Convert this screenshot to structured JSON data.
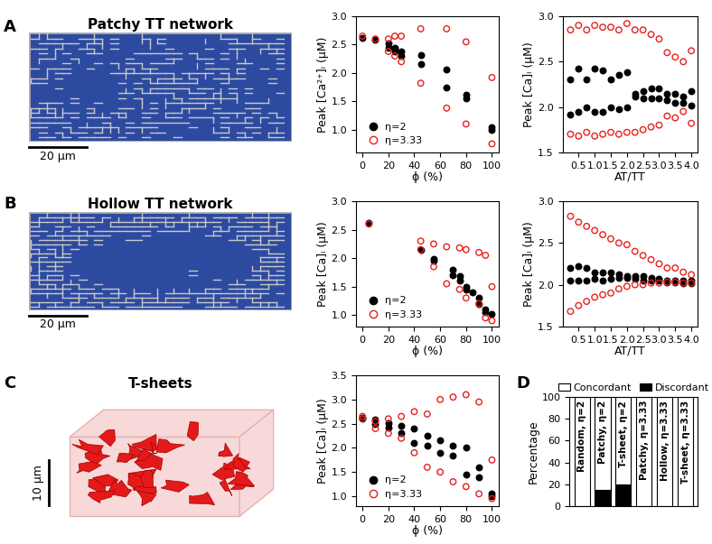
{
  "panel_labels": [
    "A",
    "B",
    "C",
    "D"
  ],
  "images": [
    {
      "title": "Patchy TT network",
      "scale_bar": "20 µm"
    },
    {
      "title": "Hollow TT network",
      "scale_bar": "20 µm"
    },
    {
      "title": "T-sheets",
      "scale_bar": "10 µm"
    }
  ],
  "chart_data": [
    {
      "type": "scatter",
      "x_label": "ϕ (%)",
      "y_label": "Peak [Ca²⁺]ᵢ (µM)",
      "xlim": [
        -5,
        105
      ],
      "xticks": [
        0,
        20,
        40,
        60,
        80,
        100
      ],
      "ylim": [
        0.6,
        3.0
      ],
      "yticks": [
        {
          "value": 1.0,
          "label": "1.0"
        },
        1.5,
        {
          "value": 2.0,
          "label": "2.0"
        },
        2.5,
        {
          "value": 3.0,
          "label": "3.0"
        }
      ],
      "legend": "lower left",
      "series": [
        {
          "name": "η=2",
          "color": "#000000",
          "marker": "circle",
          "x": [
            0,
            10,
            20,
            20,
            25,
            25,
            30,
            30,
            45,
            45,
            65,
            65,
            80,
            80,
            100,
            100
          ],
          "values": [
            2.62,
            2.58,
            2.52,
            2.45,
            2.45,
            2.38,
            2.38,
            2.3,
            2.32,
            2.15,
            2.07,
            1.75,
            1.62,
            1.55,
            1.05,
            1.0
          ]
        },
        {
          "name": "η=3.33",
          "color": "#e8201e",
          "marker": "open_circle",
          "x": [
            0,
            10,
            20,
            20,
            25,
            25,
            30,
            30,
            45,
            45,
            65,
            65,
            80,
            80,
            100,
            100
          ],
          "values": [
            2.65,
            2.6,
            2.6,
            2.38,
            2.65,
            2.3,
            2.65,
            2.2,
            2.78,
            1.82,
            2.78,
            1.38,
            2.55,
            1.1,
            1.92,
            0.75
          ]
        }
      ]
    },
    {
      "type": "scatter",
      "x_label": "AT/TT",
      "y_label": "Peak [Ca]ᵢ (µM)",
      "xlim": [
        0,
        4.2
      ],
      "xticks": [
        0.5,
        {
          "value": 1.0,
          "label": "1.0"
        },
        1.5,
        {
          "value": 2.0,
          "label": "2.0"
        },
        2.5,
        {
          "value": 3.0,
          "label": "3.0"
        },
        3.5,
        {
          "value": 4.0,
          "label": "4.0"
        }
      ],
      "ylim": [
        1.5,
        3.0
      ],
      "yticks": [
        1.5,
        {
          "value": 2.0,
          "label": "2.0"
        },
        2.5,
        {
          "value": 3.0,
          "label": "3.0"
        }
      ],
      "series": [
        {
          "color": "#000000",
          "marker": "circle",
          "x": [
            0.25,
            0.5,
            0.75,
            1.0,
            1.25,
            1.5,
            1.75,
            2.0,
            2.25,
            2.5,
            2.75,
            3.0,
            3.25,
            3.5,
            3.75,
            4.0,
            0.25,
            0.5,
            0.75,
            1.0,
            1.25,
            1.5,
            1.75,
            2.0,
            2.25,
            2.5,
            2.75,
            3.0,
            3.25,
            3.5,
            3.75,
            4.0
          ],
          "values": [
            2.3,
            2.42,
            2.3,
            2.42,
            2.4,
            2.3,
            2.35,
            2.38,
            2.15,
            2.18,
            2.2,
            2.2,
            2.15,
            2.15,
            2.12,
            2.18,
            1.92,
            1.95,
            2.0,
            1.95,
            1.95,
            2.0,
            1.98,
            2.0,
            2.12,
            2.1,
            2.1,
            2.1,
            2.08,
            2.05,
            2.05,
            2.02
          ]
        },
        {
          "color": "#e8201e",
          "marker": "open_circle",
          "x": [
            0.25,
            0.5,
            0.75,
            1.0,
            1.25,
            1.5,
            1.75,
            2.0,
            2.25,
            2.5,
            2.75,
            3.0,
            3.25,
            3.5,
            3.75,
            4.0,
            0.25,
            0.5,
            0.75,
            1.0,
            1.25,
            1.5,
            1.75,
            2.0,
            2.25,
            2.5,
            2.75,
            3.0,
            3.25,
            3.5,
            3.75,
            4.0
          ],
          "values": [
            2.85,
            2.9,
            2.85,
            2.9,
            2.88,
            2.88,
            2.85,
            2.92,
            2.85,
            2.85,
            2.8,
            2.75,
            2.6,
            2.55,
            2.5,
            2.62,
            1.7,
            1.68,
            1.72,
            1.68,
            1.7,
            1.72,
            1.7,
            1.72,
            1.72,
            1.75,
            1.78,
            1.8,
            1.9,
            1.88,
            1.95,
            1.82
          ]
        }
      ]
    },
    {
      "type": "scatter",
      "x_label": "ϕ (%)",
      "y_label": "Peak [Ca]ᵢ (µM)",
      "xlim": [
        -5,
        105
      ],
      "xticks": [
        0,
        20,
        40,
        60,
        80,
        100
      ],
      "ylim": [
        0.8,
        3.0
      ],
      "yticks": [
        {
          "value": 1.0,
          "label": "1.0"
        },
        1.5,
        {
          "value": 2.0,
          "label": "2.0"
        },
        2.5,
        {
          "value": 3.0,
          "label": "3.0"
        }
      ],
      "legend": "lower left",
      "series": [
        {
          "name": "η=2",
          "color": "#000000",
          "marker": "circle",
          "x": [
            5,
            45,
            55,
            55,
            70,
            70,
            75,
            75,
            80,
            80,
            85,
            90,
            90,
            95,
            95,
            100
          ],
          "values": [
            2.62,
            2.15,
            1.98,
            1.95,
            1.8,
            1.7,
            1.68,
            1.6,
            1.5,
            1.45,
            1.4,
            1.3,
            1.2,
            1.1,
            1.05,
            1.02
          ]
        },
        {
          "name": "η=3.33",
          "color": "#e8201e",
          "marker": "open_circle",
          "x": [
            5,
            45,
            45,
            55,
            55,
            65,
            65,
            75,
            75,
            80,
            80,
            90,
            90,
            95,
            95,
            100,
            100
          ],
          "values": [
            2.6,
            2.3,
            2.15,
            2.25,
            1.85,
            2.2,
            1.55,
            2.18,
            1.45,
            2.15,
            1.3,
            2.1,
            1.2,
            2.05,
            0.95,
            1.5,
            0.9
          ]
        }
      ]
    },
    {
      "type": "scatter",
      "x_label": "AT/TT",
      "y_label": "Peak [Ca]ᵢ (µM)",
      "xlim": [
        0,
        4.2
      ],
      "xticks": [
        0.5,
        {
          "value": 1.0,
          "label": "1.0"
        },
        1.5,
        {
          "value": 2.0,
          "label": "2.0"
        },
        2.5,
        {
          "value": 3.0,
          "label": "3.0"
        },
        3.5,
        {
          "value": 4.0,
          "label": "4.0"
        }
      ],
      "ylim": [
        1.5,
        3.0
      ],
      "yticks": [
        1.5,
        {
          "value": 2.0,
          "label": "2.0"
        },
        2.5,
        {
          "value": 3.0,
          "label": "3.0"
        }
      ],
      "series": [
        {
          "color": "#000000",
          "marker": "circle",
          "x": [
            0.25,
            0.5,
            0.75,
            1.0,
            1.25,
            1.5,
            1.75,
            2.0,
            2.25,
            2.5,
            2.75,
            3.0,
            3.25,
            3.5,
            3.75,
            4.0,
            0.25,
            0.5,
            0.75,
            1.0,
            1.25,
            1.5,
            1.75,
            2.0,
            2.25,
            2.5,
            2.75,
            3.0,
            3.25,
            3.5,
            3.75,
            4.0
          ],
          "values": [
            2.2,
            2.22,
            2.2,
            2.15,
            2.15,
            2.15,
            2.12,
            2.1,
            2.1,
            2.1,
            2.08,
            2.07,
            2.05,
            2.05,
            2.05,
            2.05,
            2.05,
            2.05,
            2.05,
            2.07,
            2.05,
            2.07,
            2.08,
            2.08,
            2.07,
            2.05,
            2.05,
            2.05,
            2.03,
            2.03,
            2.02,
            2.02
          ]
        },
        {
          "color": "#e8201e",
          "marker": "open_circle",
          "x": [
            0.25,
            0.5,
            0.75,
            1.0,
            1.25,
            1.5,
            1.75,
            2.0,
            2.25,
            2.5,
            2.75,
            3.0,
            3.25,
            3.5,
            3.75,
            4.0,
            0.25,
            0.5,
            0.75,
            1.0,
            1.25,
            1.5,
            1.75,
            2.0,
            2.25,
            2.5,
            2.75,
            3.0,
            3.25,
            3.5,
            3.75,
            4.0
          ],
          "values": [
            2.82,
            2.75,
            2.7,
            2.65,
            2.6,
            2.55,
            2.5,
            2.48,
            2.4,
            2.35,
            2.3,
            2.25,
            2.2,
            2.2,
            2.15,
            2.12,
            1.68,
            1.75,
            1.8,
            1.85,
            1.88,
            1.9,
            1.95,
            1.98,
            2.0,
            2.0,
            2.02,
            2.02,
            2.03,
            2.03,
            2.02,
            2.02
          ]
        }
      ]
    },
    {
      "type": "scatter",
      "x_label": "ϕ (%)",
      "y_label": "Peak [Ca]ᵢ (µM)",
      "xlim": [
        -5,
        105
      ],
      "xticks": [
        0,
        20,
        40,
        60,
        80,
        100
      ],
      "ylim": [
        0.8,
        3.5
      ],
      "yticks": [
        {
          "value": 1.0,
          "label": "1.0"
        },
        1.5,
        {
          "value": 2.0,
          "label": "2.0"
        },
        2.5,
        {
          "value": 3.0,
          "label": "3.0"
        },
        3.5
      ],
      "legend": "lower left",
      "series": [
        {
          "name": "η=2",
          "color": "#000000",
          "marker": "circle",
          "x": [
            0,
            0,
            10,
            10,
            20,
            20,
            30,
            30,
            40,
            40,
            50,
            50,
            60,
            60,
            70,
            70,
            80,
            80,
            90,
            90,
            100,
            100
          ],
          "values": [
            2.62,
            2.6,
            2.58,
            2.5,
            2.52,
            2.42,
            2.45,
            2.3,
            2.4,
            2.1,
            2.25,
            2.05,
            2.15,
            1.9,
            2.05,
            1.85,
            2.0,
            1.45,
            1.6,
            1.4,
            1.05,
            1.0
          ]
        },
        {
          "name": "η=3.33",
          "color": "#e8201e",
          "marker": "open_circle",
          "x": [
            0,
            0,
            10,
            10,
            20,
            20,
            30,
            30,
            40,
            40,
            50,
            50,
            60,
            60,
            70,
            70,
            80,
            80,
            90,
            90,
            100,
            100
          ],
          "values": [
            2.65,
            2.6,
            2.55,
            2.4,
            2.6,
            2.3,
            2.65,
            2.2,
            2.75,
            1.9,
            2.7,
            1.6,
            3.0,
            1.5,
            3.05,
            1.3,
            3.1,
            1.2,
            2.95,
            1.05,
            1.75,
            0.95
          ]
        }
      ]
    },
    {
      "type": "bar",
      "stacked": true,
      "y_label": "Percentage",
      "categories": [
        "Random, η=2",
        "Patchy, η=2",
        "T-sheet, η=2",
        "Patchy, η=3.33",
        "Hollow, η=3.33",
        "T-sheet, η=3.33"
      ],
      "ylim": [
        0,
        100
      ],
      "yticks": [
        0,
        20,
        40,
        60,
        80,
        100
      ],
      "legend": "top",
      "tick_labels": "y",
      "series": [
        {
          "name": "Discordant",
          "color": "#000000",
          "values": [
            0,
            15,
            20,
            0,
            0,
            0
          ]
        },
        {
          "name": "Concordant",
          "color": "#ffffff",
          "values": [
            100,
            85,
            80,
            100,
            100,
            100
          ]
        }
      ]
    }
  ]
}
